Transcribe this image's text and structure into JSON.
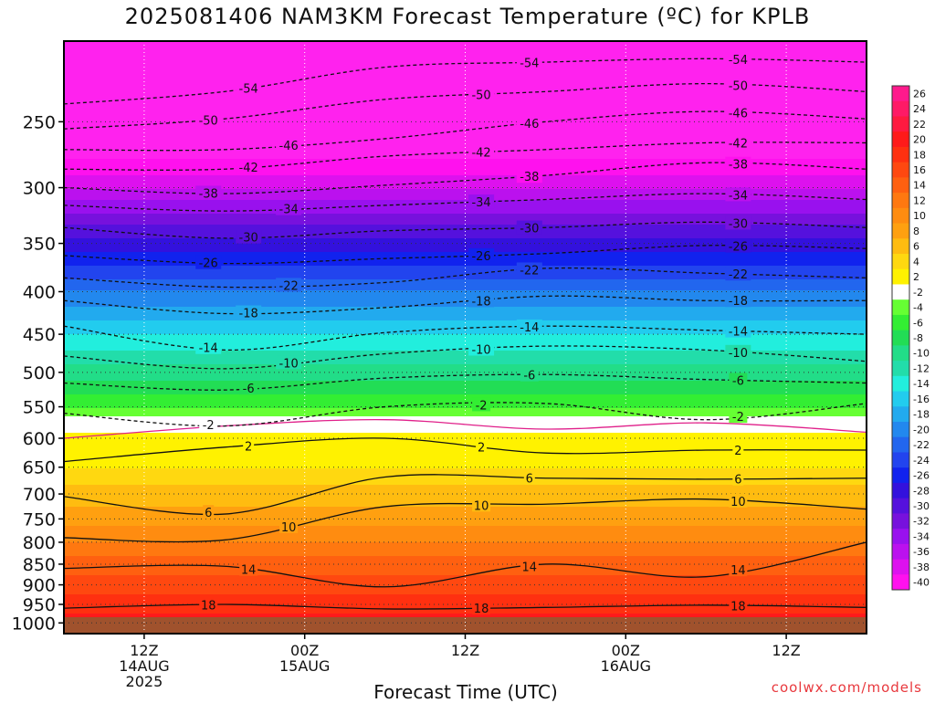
{
  "chart_data": {
    "type": "heatmap",
    "title": "2025081406 NAM3KM Forecast Temperature (ºC) for KPLB",
    "xlabel": "Forecast Time (UTC)",
    "ylabel": "",
    "credit": "coolwx.com/models",
    "x_ticks": [
      {
        "hour": 12,
        "lines": [
          "12Z",
          "14AUG",
          "2025"
        ]
      },
      {
        "hour": 24,
        "lines": [
          "00Z",
          "15AUG"
        ]
      },
      {
        "hour": 36,
        "lines": [
          "12Z"
        ]
      },
      {
        "hour": 48,
        "lines": [
          "00Z",
          "16AUG"
        ]
      },
      {
        "hour": 60,
        "lines": [
          "12Z"
        ]
      }
    ],
    "xlim_hours": [
      6,
      66
    ],
    "y_ticks": [
      250,
      300,
      350,
      400,
      450,
      500,
      550,
      600,
      650,
      700,
      750,
      800,
      850,
      900,
      950,
      1000
    ],
    "ylim_hpa": [
      1030,
      200
    ],
    "y_scale": "log-pressure",
    "grid": true,
    "colorbar": {
      "labels": [
        "26",
        "24",
        "22",
        "20",
        "18",
        "16",
        "14",
        "12",
        "10",
        "8",
        "6",
        "4",
        "2",
        "-2",
        "-4",
        "-6",
        "-8",
        "-10",
        "-12",
        "-14",
        "-16",
        "-18",
        "-20",
        "-22",
        "-24",
        "-26",
        "-28",
        "-30",
        "-32",
        "-34",
        "-36",
        "-38",
        "-40"
      ],
      "colors": [
        "#ff1a8c",
        "#ff1a66",
        "#ff1a40",
        "#ff1a1a",
        "#ff3010",
        "#ff4810",
        "#ff6010",
        "#ff7810",
        "#ff8c10",
        "#ffa010",
        "#ffbc10",
        "#ffd810",
        "#fff200",
        "#ffffff",
        "#66ff33",
        "#33ee33",
        "#22dd55",
        "#22dd88",
        "#22ddaa",
        "#22eedd",
        "#22ccee",
        "#22aaee",
        "#2288ee",
        "#2266ee",
        "#2244ee",
        "#1122ee",
        "#3311dd",
        "#5511dd",
        "#7711dd",
        "#9911ee",
        "#bb11ee",
        "#dd11ee",
        "#ff11ee"
      ]
    },
    "profile": {
      "pressure_hpa": [
        1000,
        950,
        900,
        850,
        800,
        750,
        700,
        650,
        600,
        550,
        500,
        450,
        400,
        350,
        300,
        250
      ],
      "temperature_c": [
        20,
        18,
        16,
        14,
        11,
        8,
        6,
        3,
        1,
        -5,
        -10,
        -15,
        -21,
        -28,
        -37,
        -48
      ]
    },
    "isotherms": [
      {
        "label": "18",
        "style": "solid",
        "x_hours": [
          6,
          18,
          30,
          42,
          54,
          66
        ],
        "pressure_hpa": [
          960,
          950,
          962,
          958,
          952,
          958
        ]
      },
      {
        "label": "14",
        "style": "solid",
        "x_hours": [
          6,
          18,
          30,
          42,
          54,
          66
        ],
        "pressure_hpa": [
          860,
          855,
          905,
          850,
          880,
          800
        ]
      },
      {
        "label": "10",
        "style": "solid",
        "x_hours": [
          6,
          18,
          30,
          42,
          54,
          66
        ],
        "pressure_hpa": [
          790,
          795,
          725,
          720,
          710,
          730
        ]
      },
      {
        "label": "6",
        "style": "solid",
        "x_hours": [
          6,
          18,
          30,
          42,
          54,
          66
        ],
        "pressure_hpa": [
          705,
          740,
          668,
          670,
          672,
          670
        ]
      },
      {
        "label": "2",
        "style": "solid",
        "x_hours": [
          6,
          18,
          30,
          42,
          54,
          66
        ],
        "pressure_hpa": [
          640,
          615,
          600,
          625,
          620,
          620
        ]
      },
      {
        "label": "-2",
        "style": "solid-pink",
        "x_hours": [
          6,
          18,
          30,
          42,
          54,
          66
        ],
        "pressure_hpa": [
          600,
          580,
          570,
          585,
          575,
          590
        ]
      },
      {
        "label": "2",
        "style": "dashed",
        "x_hours": [
          6,
          18,
          30,
          42,
          54,
          66
        ],
        "pressure_hpa": [
          560,
          580,
          550,
          545,
          570,
          545
        ]
      },
      {
        "label": "6",
        "style": "dashed",
        "x_hours": [
          6,
          18,
          30,
          42,
          54,
          66
        ],
        "pressure_hpa": [
          515,
          525,
          508,
          503,
          510,
          515
        ]
      },
      {
        "label": "10",
        "style": "dashed",
        "x_hours": [
          6,
          18,
          30,
          42,
          54,
          66
        ],
        "pressure_hpa": [
          478,
          495,
          475,
          465,
          470,
          485
        ]
      },
      {
        "label": "14",
        "style": "dashed",
        "x_hours": [
          6,
          18,
          30,
          42,
          54,
          66
        ],
        "pressure_hpa": [
          440,
          470,
          448,
          440,
          445,
          450
        ]
      },
      {
        "label": "18",
        "style": "dashed",
        "x_hours": [
          6,
          18,
          30,
          42,
          54,
          66
        ],
        "pressure_hpa": [
          410,
          425,
          418,
          405,
          410,
          410
        ]
      },
      {
        "label": "22",
        "style": "dashed",
        "x_hours": [
          6,
          18,
          30,
          42,
          54,
          66
        ],
        "pressure_hpa": [
          385,
          395,
          390,
          375,
          380,
          385
        ]
      },
      {
        "label": "26",
        "style": "dashed",
        "x_hours": [
          6,
          18,
          30,
          42,
          54,
          66
        ],
        "pressure_hpa": [
          362,
          370,
          365,
          360,
          352,
          355
        ]
      },
      {
        "label": "30",
        "style": "dashed",
        "x_hours": [
          6,
          18,
          30,
          42,
          54,
          66
        ],
        "pressure_hpa": [
          335,
          345,
          338,
          335,
          330,
          335
        ]
      },
      {
        "label": "34",
        "style": "dashed",
        "x_hours": [
          6,
          18,
          30,
          42,
          54,
          66
        ],
        "pressure_hpa": [
          315,
          320,
          315,
          310,
          305,
          310
        ]
      },
      {
        "label": "38",
        "style": "dashed",
        "x_hours": [
          6,
          18,
          30,
          42,
          54,
          66
        ],
        "pressure_hpa": [
          300,
          305,
          298,
          290,
          280,
          285
        ]
      },
      {
        "label": "42",
        "style": "dashed",
        "x_hours": [
          6,
          18,
          30,
          42,
          54,
          66
        ],
        "pressure_hpa": [
          285,
          285,
          275,
          270,
          265,
          265
        ]
      },
      {
        "label": "46",
        "style": "dashed",
        "x_hours": [
          6,
          18,
          30,
          42,
          54,
          66
        ],
        "pressure_hpa": [
          270,
          270,
          262,
          250,
          243,
          248
        ]
      },
      {
        "label": "50",
        "style": "dashed",
        "x_hours": [
          6,
          18,
          30,
          42,
          54,
          66
        ],
        "pressure_hpa": [
          255,
          248,
          235,
          230,
          225,
          230
        ]
      },
      {
        "label": "54",
        "style": "dashed",
        "x_hours": [
          6,
          18,
          30,
          42,
          54,
          66
        ],
        "pressure_hpa": [
          238,
          230,
          215,
          212,
          210,
          212
        ]
      }
    ]
  }
}
